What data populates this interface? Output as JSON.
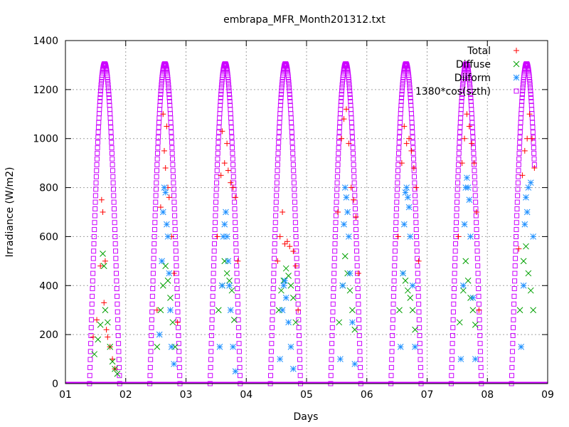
{
  "chart_data": {
    "type": "scatter",
    "title": "embrapa_MFR_Month201312.txt",
    "xlabel": "Days",
    "ylabel": "Irradiance (W/m2)",
    "xlim": [
      1,
      9
    ],
    "ylim": [
      0,
      1400
    ],
    "x_ticks": [
      "01",
      "02",
      "03",
      "04",
      "05",
      "06",
      "07",
      "08",
      "09"
    ],
    "y_ticks": [
      0,
      200,
      400,
      600,
      800,
      1000,
      1200,
      1400
    ],
    "grid": true,
    "legend_position": "top-right",
    "series": [
      {
        "name": "Total",
        "marker": "plus",
        "color": "#ff0000",
        "x": [
          1.46,
          1.52,
          1.58,
          1.6,
          1.62,
          1.64,
          1.66,
          1.68,
          1.7,
          1.74,
          1.78,
          1.82,
          2.52,
          2.58,
          2.62,
          2.64,
          2.66,
          2.68,
          2.7,
          2.72,
          2.76,
          2.8,
          2.86,
          3.52,
          3.58,
          3.6,
          3.64,
          3.68,
          3.7,
          3.74,
          3.78,
          3.82,
          3.86,
          4.52,
          4.56,
          4.6,
          4.64,
          4.68,
          4.72,
          4.78,
          4.82,
          4.86,
          5.52,
          5.58,
          5.62,
          5.66,
          5.7,
          5.74,
          5.78,
          5.82,
          5.86,
          6.52,
          6.58,
          6.62,
          6.66,
          6.7,
          6.74,
          6.78,
          6.82,
          6.86,
          7.52,
          7.58,
          7.62,
          7.66,
          7.7,
          7.74,
          7.78,
          7.82,
          7.86,
          8.52,
          8.58,
          8.62,
          8.66,
          8.7,
          8.74,
          8.78
        ],
        "y": [
          190,
          260,
          480,
          750,
          700,
          330,
          500,
          220,
          190,
          150,
          100,
          60,
          300,
          720,
          1100,
          950,
          880,
          1050,
          800,
          760,
          600,
          450,
          250,
          600,
          850,
          1030,
          900,
          980,
          870,
          820,
          800,
          760,
          500,
          500,
          600,
          700,
          570,
          580,
          560,
          540,
          480,
          300,
          700,
          1000,
          1080,
          1120,
          980,
          800,
          750,
          680,
          450,
          600,
          900,
          1050,
          980,
          1000,
          950,
          880,
          800,
          500,
          600,
          900,
          1000,
          1100,
          1050,
          980,
          900,
          700,
          300,
          550,
          850,
          950,
          1000,
          1100,
          1000,
          880
        ]
      },
      {
        "name": "Diffuse",
        "marker": "cross",
        "color": "#00a000",
        "x": [
          1.48,
          1.54,
          1.58,
          1.62,
          1.64,
          1.66,
          1.7,
          1.74,
          1.78,
          1.82,
          1.86,
          2.52,
          2.58,
          2.62,
          2.66,
          2.7,
          2.74,
          2.78,
          2.82,
          3.54,
          3.6,
          3.64,
          3.68,
          3.72,
          3.76,
          3.8,
          4.54,
          4.58,
          4.62,
          4.66,
          4.7,
          4.74,
          4.78,
          4.82,
          5.54,
          5.6,
          5.64,
          5.68,
          5.72,
          5.76,
          5.8,
          6.54,
          6.6,
          6.64,
          6.68,
          6.72,
          6.76,
          6.8,
          7.54,
          7.6,
          7.64,
          7.68,
          7.72,
          7.76,
          7.8,
          8.54,
          8.6,
          8.64,
          8.68,
          8.72,
          8.76
        ],
        "y": [
          120,
          180,
          240,
          530,
          480,
          300,
          250,
          150,
          90,
          60,
          40,
          150,
          300,
          400,
          480,
          420,
          350,
          250,
          150,
          300,
          400,
          500,
          450,
          420,
          380,
          260,
          300,
          380,
          420,
          470,
          440,
          400,
          350,
          250,
          250,
          400,
          520,
          450,
          380,
          300,
          220,
          300,
          450,
          420,
          380,
          350,
          300,
          220,
          250,
          380,
          500,
          420,
          350,
          300,
          240,
          300,
          500,
          560,
          450,
          380,
          300
        ]
      },
      {
        "name": "Diiform",
        "marker": "star",
        "color": "#1e90ff",
        "x": [
          2.56,
          2.6,
          2.62,
          2.64,
          2.66,
          2.68,
          2.7,
          2.72,
          2.74,
          2.76,
          2.8,
          3.56,
          3.6,
          3.62,
          3.64,
          3.66,
          3.68,
          3.7,
          3.72,
          3.74,
          3.78,
          3.82,
          4.56,
          4.6,
          4.62,
          4.64,
          4.66,
          4.7,
          4.74,
          4.78,
          5.56,
          5.6,
          5.62,
          5.64,
          5.66,
          5.68,
          5.7,
          5.72,
          5.76,
          5.8,
          6.56,
          6.6,
          6.62,
          6.64,
          6.66,
          6.68,
          6.7,
          6.72,
          6.76,
          6.8,
          7.56,
          7.6,
          7.62,
          7.64,
          7.66,
          7.68,
          7.7,
          7.72,
          7.76,
          7.8,
          8.56,
          8.6,
          8.62,
          8.64,
          8.66,
          8.68,
          8.72,
          8.76
        ],
        "y": [
          200,
          500,
          700,
          800,
          780,
          650,
          600,
          450,
          300,
          150,
          80,
          150,
          400,
          600,
          650,
          700,
          600,
          500,
          400,
          300,
          150,
          50,
          100,
          300,
          400,
          420,
          350,
          250,
          150,
          60,
          100,
          400,
          650,
          800,
          760,
          700,
          600,
          450,
          250,
          80,
          150,
          450,
          650,
          780,
          800,
          760,
          720,
          600,
          400,
          150,
          100,
          400,
          650,
          800,
          840,
          800,
          750,
          600,
          350,
          100,
          150,
          400,
          650,
          760,
          700,
          800,
          820,
          600
        ]
      },
      {
        "name": "1380*cos(szth)",
        "marker": "square",
        "color": "#cc00ff",
        "curve": {
          "peak": 1305,
          "noon_offset": 0.65,
          "sunrise_offset": 0.4,
          "sunset_offset": 0.9,
          "days": [
            1,
            2,
            3,
            4,
            5,
            6,
            7,
            8
          ],
          "end_x": 8.78
        }
      }
    ]
  }
}
